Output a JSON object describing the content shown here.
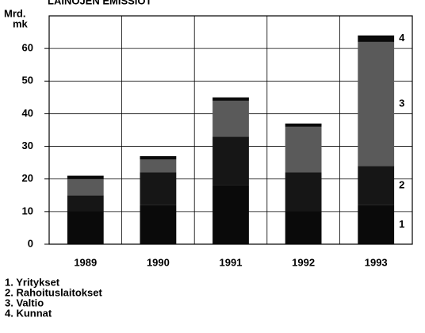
{
  "chart_data": {
    "type": "stacked_bar",
    "title": "LAINOJEN EMISSIOT",
    "y_label": [
      "Mrd.",
      "mk"
    ],
    "categories": [
      "1989",
      "1990",
      "1991",
      "1992",
      "1993"
    ],
    "series": [
      {
        "name": "1. Yritykset",
        "marker": "1",
        "color": "#0a0a0a",
        "values": [
          10,
          12,
          18,
          10,
          12
        ]
      },
      {
        "name": "2. Rahoituslaitokset",
        "marker": "2",
        "color": "#161616",
        "values": [
          5,
          10,
          15,
          12,
          12
        ]
      },
      {
        "name": "3. Valtio",
        "marker": "3",
        "color": "#5a5a5a",
        "values": [
          5,
          4,
          11,
          14,
          38
        ]
      },
      {
        "name": "4. Kunnat",
        "marker": "4",
        "color": "#0a0a0a",
        "values": [
          1,
          1,
          1,
          1,
          2
        ]
      }
    ],
    "ylim": [
      0,
      70
    ],
    "yticks": [
      0,
      10,
      20,
      30,
      40,
      50,
      60
    ],
    "grid": true
  }
}
